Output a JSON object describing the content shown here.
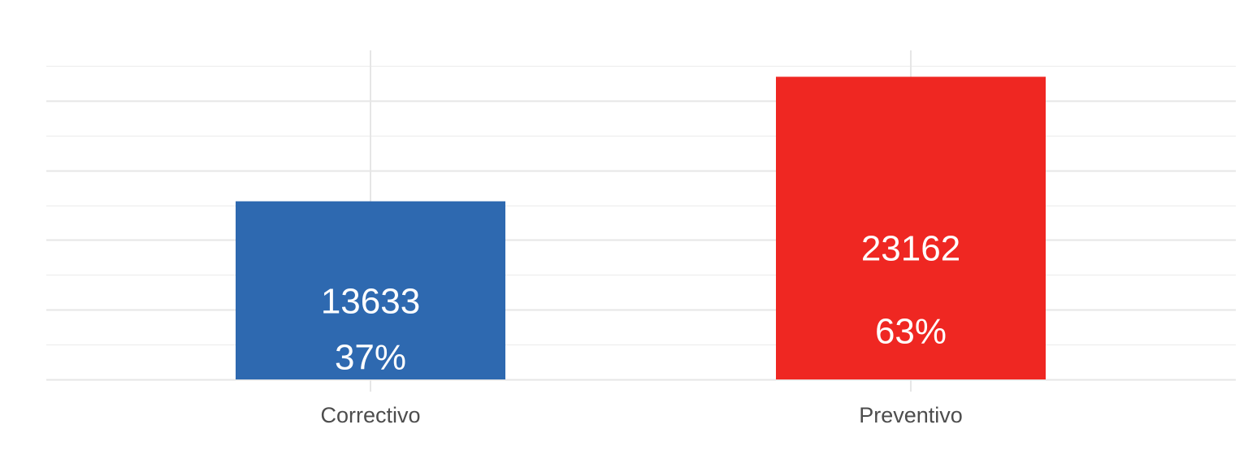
{
  "chart_data": {
    "type": "bar",
    "categories": [
      "Correctivo",
      "Preventivo"
    ],
    "values": [
      13633,
      23162
    ],
    "percent_labels": [
      "37%",
      "63%"
    ],
    "colors": [
      "#2e69b0",
      "#ef2722"
    ],
    "ylim": [
      0,
      24000
    ],
    "grid": true,
    "legend": "none",
    "title": "",
    "xlabel": "",
    "ylabel": ""
  }
}
